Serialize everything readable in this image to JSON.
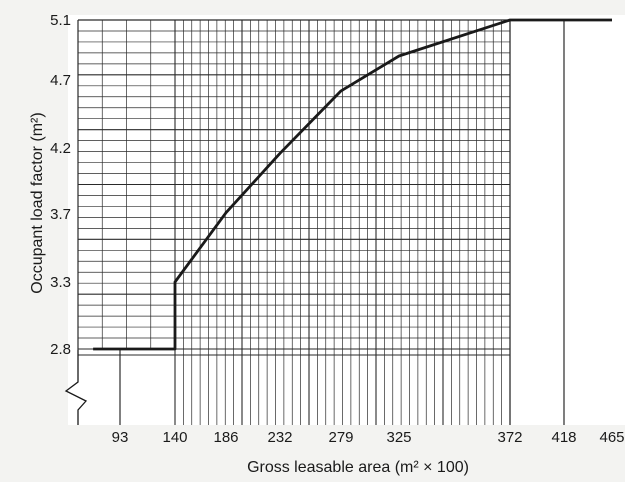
{
  "chart_data": {
    "type": "line",
    "title": "",
    "xlabel": "Gross leasable area (m² × 100)",
    "ylabel": "Occupant load factor (m²)",
    "x_ticks": [
      "93",
      "140",
      "186",
      "232",
      "279",
      "325",
      "372",
      "418",
      "465"
    ],
    "y_ticks": [
      "2.8",
      "3.3",
      "3.7",
      "4.2",
      "4.7",
      "5.1"
    ],
    "y_axis_break": true,
    "grid": true,
    "series": [
      {
        "x": [
          70,
          140,
          140,
          186,
          232,
          279,
          325,
          372,
          465
        ],
        "y": [
          2.8,
          2.8,
          3.3,
          3.71,
          4.16,
          4.62,
          4.86,
          5.1,
          5.1
        ]
      }
    ],
    "colors": {
      "line": "#1a1a1a",
      "grid": "#2a2a2a",
      "background": "#ffffff"
    }
  }
}
